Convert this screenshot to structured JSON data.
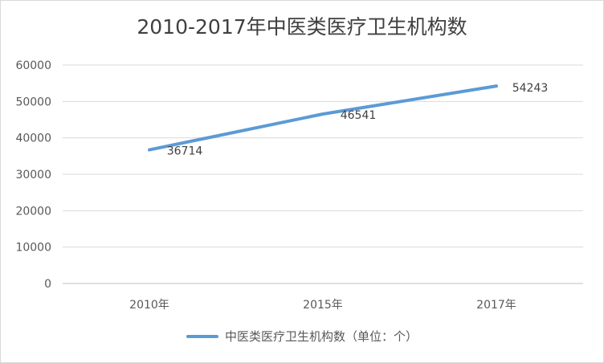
{
  "chart_data": {
    "type": "line",
    "title": "2010-2017年中医类医疗卫生机构数",
    "categories": [
      "2010年",
      "2015年",
      "2017年"
    ],
    "series": [
      {
        "name": "中医类医疗卫生机构数（单位：个）",
        "values": [
          36714,
          46541,
          54243
        ]
      }
    ],
    "ylim": [
      0,
      60000
    ],
    "yticks": [
      0,
      10000,
      20000,
      30000,
      40000,
      50000,
      60000
    ],
    "grid": true,
    "legend": "bottom",
    "line_color": "#5b9bd5"
  }
}
